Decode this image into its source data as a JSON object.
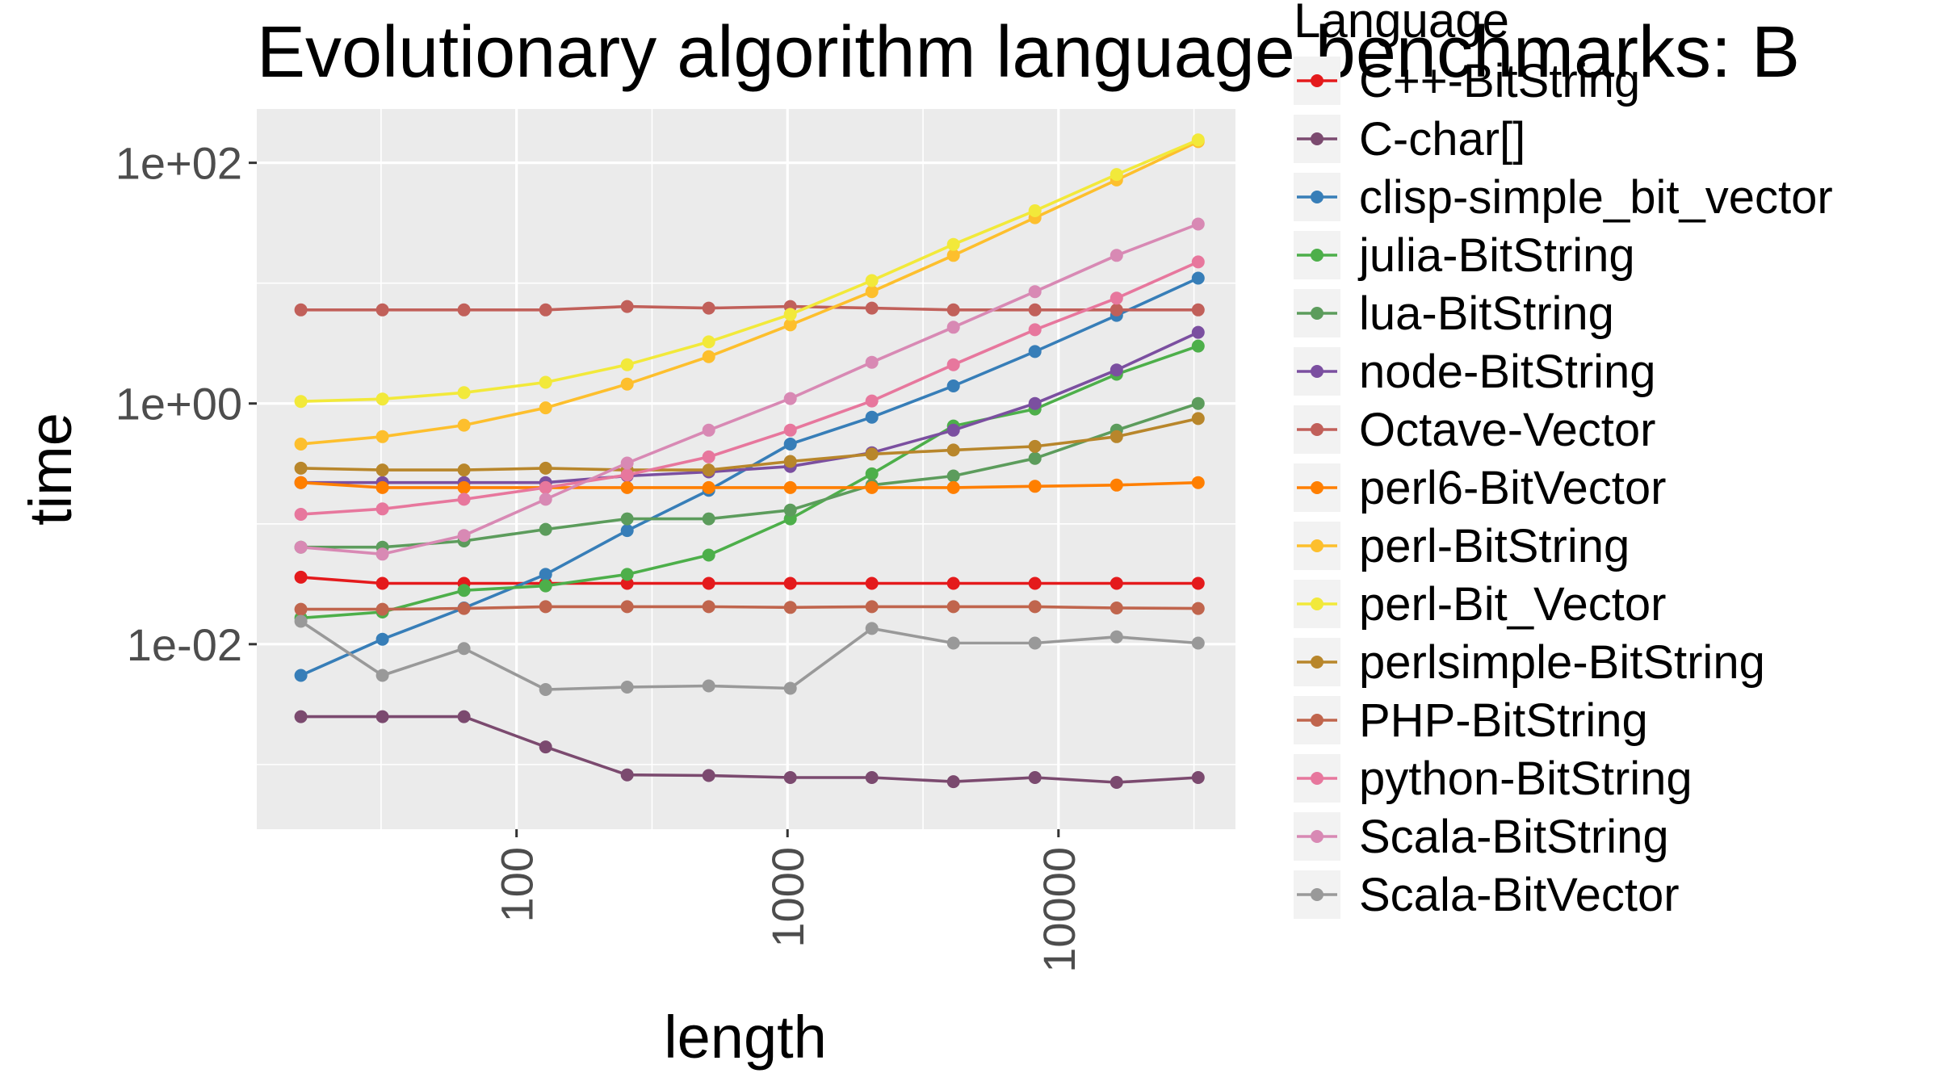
{
  "chart_data": {
    "type": "line",
    "title": "Evolutionary algorithm language benchmarks: B",
    "xlabel": "length",
    "ylabel": "time",
    "xscale": "log10",
    "yscale": "log10",
    "xlim": [
      11,
      45000
    ],
    "ylim": [
      0.00029,
      280
    ],
    "grid": true,
    "legend_position": "right",
    "legend_title": "Language",
    "x_ticks": [
      {
        "value": 100,
        "label": "100"
      },
      {
        "value": 1000,
        "label": "1000"
      },
      {
        "value": 10000,
        "label": "10000"
      }
    ],
    "y_ticks": [
      {
        "value": 0.01,
        "label": "1e-02"
      },
      {
        "value": 1,
        "label": "1e+00"
      },
      {
        "value": 100,
        "label": "1e+02"
      }
    ],
    "x": [
      16,
      32,
      64,
      128,
      256,
      512,
      1024,
      2048,
      4096,
      8192,
      16384,
      32768
    ],
    "series": [
      {
        "name": "C++-BitString",
        "color": "#e41a1c",
        "values": [
          0.036,
          0.032,
          0.032,
          0.032,
          0.032,
          0.032,
          0.032,
          0.032,
          0.032,
          0.032,
          0.032,
          0.032
        ]
      },
      {
        "name": "C-char[]",
        "color": "#7b4a6f",
        "values": [
          0.0025,
          0.0025,
          0.0025,
          0.0014,
          0.00082,
          0.00081,
          0.00078,
          0.00078,
          0.00072,
          0.00078,
          0.00071,
          0.00078
        ]
      },
      {
        "name": "clisp-simple_bit_vector",
        "color": "#377eb8",
        "values": [
          0.0055,
          0.011,
          0.02,
          0.038,
          0.088,
          0.19,
          0.46,
          0.77,
          1.4,
          2.7,
          5.4,
          11
        ]
      },
      {
        "name": "julia-BitString",
        "color": "#4daf4a",
        "values": [
          0.0165,
          0.0185,
          0.028,
          0.0305,
          0.038,
          0.055,
          0.11,
          0.26,
          0.65,
          0.9,
          1.75,
          3.0
        ]
      },
      {
        "name": "lua-BitString",
        "color": "#5c9c5c",
        "values": [
          0.064,
          0.064,
          0.072,
          0.09,
          0.11,
          0.11,
          0.13,
          0.21,
          0.25,
          0.35,
          0.6,
          1.0
        ]
      },
      {
        "name": "node-BitString",
        "color": "#7b4fa0",
        "values": [
          0.22,
          0.22,
          0.22,
          0.22,
          0.25,
          0.27,
          0.3,
          0.39,
          0.6,
          1.0,
          1.9,
          3.9
        ]
      },
      {
        "name": "Octave-Vector",
        "color": "#c1605a",
        "values": [
          6.0,
          6.0,
          6.0,
          6.0,
          6.4,
          6.2,
          6.4,
          6.2,
          6.0,
          6.0,
          6.0,
          6.0
        ]
      },
      {
        "name": "perl6-BitVector",
        "color": "#ff7f00",
        "values": [
          0.22,
          0.2,
          0.2,
          0.2,
          0.2,
          0.2,
          0.2,
          0.2,
          0.2,
          0.205,
          0.21,
          0.22
        ]
      },
      {
        "name": "perl-BitString",
        "color": "#fdbf2d",
        "values": [
          0.46,
          0.53,
          0.66,
          0.92,
          1.45,
          2.45,
          4.5,
          8.5,
          17,
          35,
          72,
          150
        ]
      },
      {
        "name": "perl-Bit_Vector",
        "color": "#f2e93a",
        "values": [
          1.04,
          1.09,
          1.23,
          1.5,
          2.1,
          3.25,
          5.5,
          10.5,
          21,
          40,
          80,
          155
        ]
      },
      {
        "name": "perlsimple-BitString",
        "color": "#b8862b",
        "values": [
          0.29,
          0.28,
          0.28,
          0.29,
          0.28,
          0.28,
          0.33,
          0.38,
          0.41,
          0.44,
          0.53,
          0.75
        ]
      },
      {
        "name": "PHP-BitString",
        "color": "#c0654d",
        "values": [
          0.0195,
          0.0195,
          0.0198,
          0.0205,
          0.0205,
          0.0205,
          0.0202,
          0.0205,
          0.0205,
          0.0205,
          0.02,
          0.0198
        ]
      },
      {
        "name": "python-BitString",
        "color": "#e7779d",
        "values": [
          0.12,
          0.133,
          0.16,
          0.2,
          0.255,
          0.36,
          0.6,
          1.05,
          2.1,
          4.1,
          7.5,
          15
        ]
      },
      {
        "name": "Scala-BitString",
        "color": "#d889b4",
        "values": [
          0.064,
          0.056,
          0.08,
          0.16,
          0.32,
          0.6,
          1.1,
          2.2,
          4.3,
          8.5,
          17,
          31
        ]
      },
      {
        "name": "Scala-BitVector",
        "color": "#999999",
        "values": [
          0.0155,
          0.0055,
          0.0092,
          0.0042,
          0.0044,
          0.0045,
          0.0043,
          0.0135,
          0.0102,
          0.0102,
          0.0115,
          0.0102
        ]
      }
    ]
  }
}
